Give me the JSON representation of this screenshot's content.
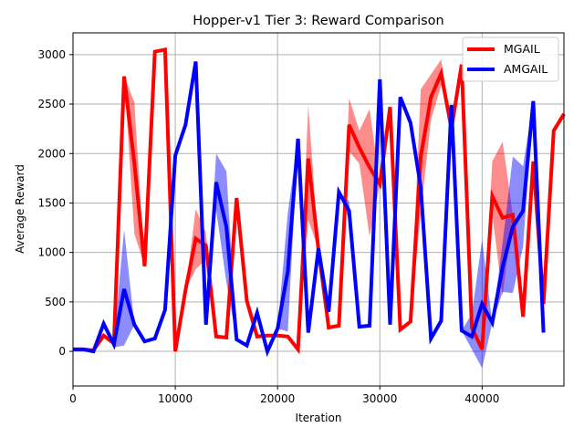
{
  "chart_data": {
    "type": "line",
    "title": "Hopper-v1 Tier 3: Reward Comparison",
    "xlabel": "Iteration",
    "ylabel": "Average Reward",
    "xlim": [
      0,
      48000
    ],
    "ylim": [
      -350,
      3220
    ],
    "xticks": [
      0,
      10000,
      20000,
      30000,
      40000
    ],
    "xtick_labels": [
      "0",
      "10000",
      "20000",
      "30000",
      "40000"
    ],
    "yticks": [
      0,
      500,
      1000,
      1500,
      2000,
      2500,
      3000
    ],
    "ytick_labels": [
      "0",
      "500",
      "1000",
      "1500",
      "2000",
      "2500",
      "3000"
    ],
    "grid": true,
    "legend_position": "top-right",
    "colors": {
      "MGAIL": "#ff0000",
      "AMGAIL": "#0000ff"
    },
    "series": [
      {
        "name": "MGAIL",
        "x": [
          0,
          1000,
          2000,
          3000,
          4000,
          5000,
          6000,
          7000,
          8000,
          9000,
          10000,
          11000,
          12000,
          13000,
          14000,
          15000,
          16000,
          17000,
          18000,
          19000,
          20000,
          21000,
          22000,
          23000,
          24000,
          25000,
          26000,
          27000,
          28000,
          29000,
          30000,
          31000,
          32000,
          33000,
          34000,
          35000,
          36000,
          37000,
          38000,
          39000,
          40000,
          41000,
          42000,
          43000,
          44000,
          45000,
          46000,
          47000,
          48000
        ],
        "values": [
          20,
          20,
          10,
          160,
          80,
          2780,
          1900,
          860,
          3030,
          3050,
          0,
          620,
          1140,
          1070,
          150,
          140,
          1550,
          510,
          150,
          160,
          160,
          150,
          20,
          1950,
          1030,
          240,
          260,
          2290,
          2060,
          1860,
          1690,
          2470,
          220,
          300,
          1970,
          2570,
          2810,
          2250,
          2900,
          240,
          20,
          1570,
          1350,
          1380,
          350,
          1920,
          480,
          2230,
          2400
        ],
        "upper": [
          20,
          20,
          10,
          160,
          80,
          2780,
          2520,
          860,
          3030,
          3050,
          0,
          620,
          1440,
          1200,
          150,
          140,
          1550,
          510,
          150,
          160,
          160,
          150,
          20,
          2490,
          1030,
          240,
          260,
          2560,
          2230,
          2450,
          1690,
          2470,
          220,
          300,
          2650,
          2800,
          2950,
          2250,
          2900,
          240,
          20,
          1920,
          2120,
          1380,
          350,
          1920,
          480,
          2230,
          2400
        ],
        "lower": [
          20,
          20,
          10,
          160,
          80,
          2780,
          1190,
          860,
          3030,
          3050,
          0,
          620,
          830,
          930,
          150,
          140,
          1550,
          510,
          150,
          160,
          160,
          150,
          20,
          1330,
          1030,
          240,
          260,
          2020,
          1900,
          1160,
          1690,
          2470,
          220,
          300,
          1400,
          2340,
          2690,
          2250,
          2900,
          240,
          20,
          1380,
          560,
          1380,
          350,
          1920,
          480,
          2230,
          2400
        ]
      },
      {
        "name": "AMGAIL",
        "x": [
          0,
          1000,
          2000,
          3000,
          4000,
          5000,
          6000,
          7000,
          8000,
          9000,
          10000,
          11000,
          12000,
          13000,
          14000,
          15000,
          16000,
          17000,
          18000,
          19000,
          20000,
          21000,
          22000,
          23000,
          24000,
          25000,
          26000,
          27000,
          28000,
          29000,
          30000,
          31000,
          32000,
          33000,
          34000,
          35000,
          36000,
          37000,
          38000,
          39000,
          40000,
          41000,
          42000,
          43000,
          44000,
          45000,
          46000
        ],
        "values": [
          20,
          20,
          0,
          280,
          70,
          630,
          270,
          100,
          130,
          420,
          1980,
          2290,
          2930,
          270,
          1710,
          1260,
          120,
          60,
          390,
          0,
          230,
          810,
          2150,
          190,
          1040,
          400,
          1610,
          1420,
          250,
          260,
          2750,
          270,
          2570,
          2310,
          1660,
          130,
          310,
          2490,
          210,
          150,
          480,
          290,
          850,
          1260,
          1420,
          2530,
          190
        ],
        "upper": [
          20,
          20,
          0,
          280,
          100,
          1230,
          270,
          100,
          130,
          420,
          1980,
          2290,
          2930,
          270,
          2000,
          1820,
          120,
          60,
          390,
          0,
          230,
          1400,
          2150,
          190,
          1040,
          400,
          1610,
          1520,
          250,
          260,
          2750,
          270,
          2570,
          2310,
          1660,
          130,
          310,
          2490,
          210,
          380,
          1130,
          290,
          1100,
          1970,
          1870,
          2530,
          190
        ],
        "lower": [
          20,
          20,
          0,
          280,
          40,
          60,
          270,
          100,
          130,
          420,
          1980,
          2290,
          2930,
          270,
          1430,
          700,
          120,
          60,
          390,
          0,
          230,
          200,
          2150,
          190,
          1040,
          400,
          1610,
          1320,
          250,
          260,
          2750,
          270,
          2570,
          2310,
          1660,
          130,
          310,
          2490,
          210,
          20,
          -170,
          290,
          600,
          590,
          1060,
          2530,
          190
        ]
      }
    ]
  }
}
